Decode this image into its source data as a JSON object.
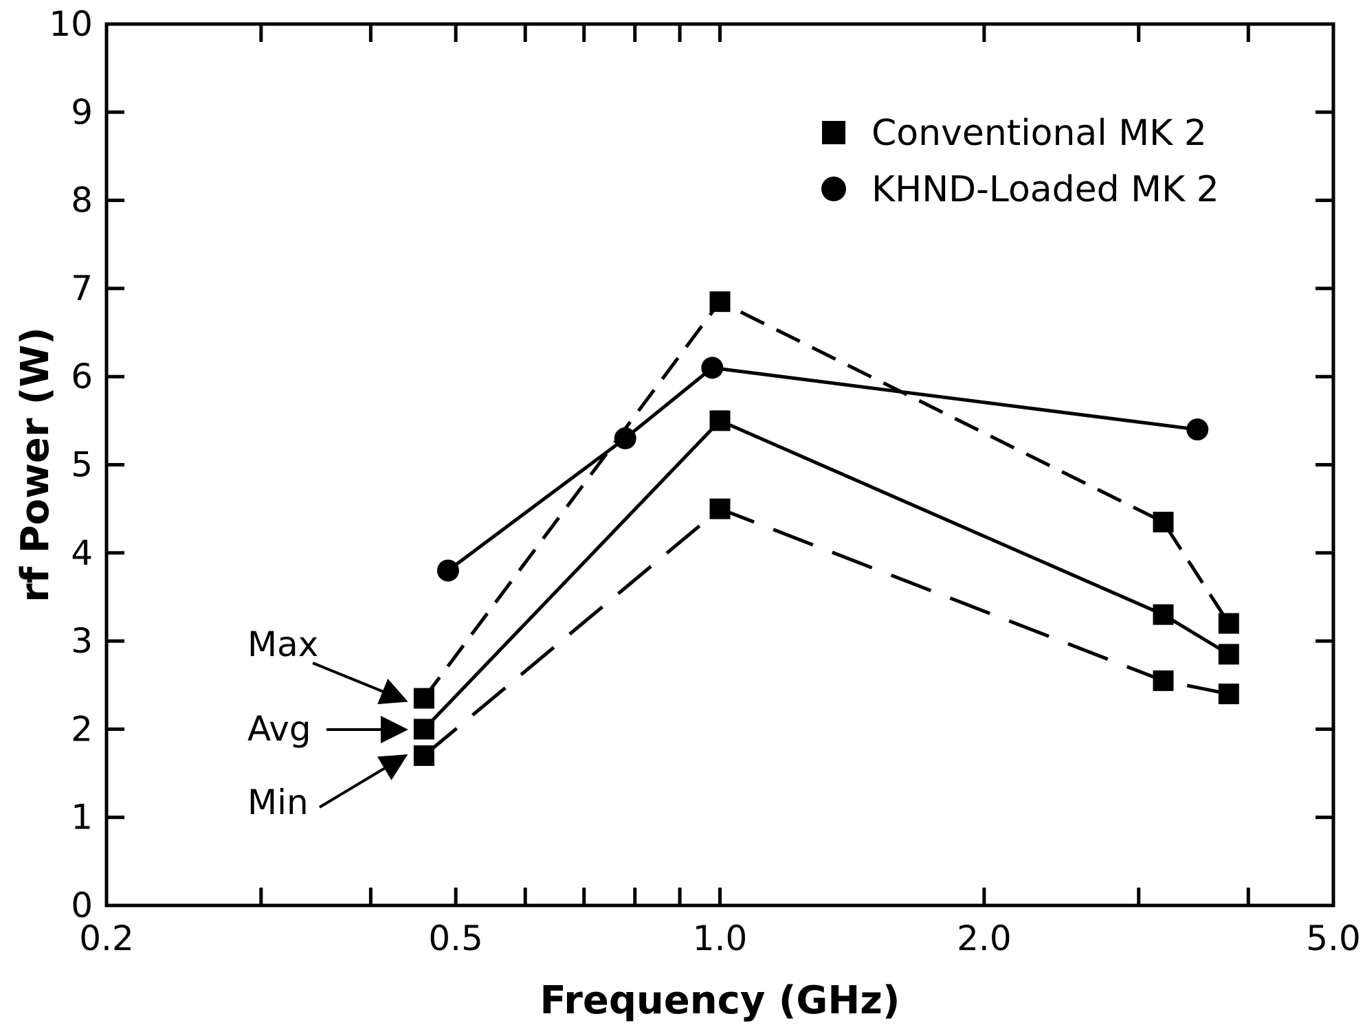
{
  "chart_data": {
    "type": "line",
    "title": "",
    "xlabel": "Frequency (GHz)",
    "ylabel": "rf Power (W)",
    "x_scale": "log",
    "xlim": [
      0.2,
      5.0
    ],
    "ylim": [
      0,
      10
    ],
    "x_tick_labels": [
      "0.2",
      "0.5",
      "1.0",
      "2.0",
      "5.0"
    ],
    "y_tick_labels": [
      "0",
      "1",
      "2",
      "3",
      "4",
      "5",
      "6",
      "7",
      "8",
      "9",
      "10"
    ],
    "grid": false,
    "legend_position": "top-right",
    "legend": [
      {
        "label": "Conventional MK 2",
        "marker": "square"
      },
      {
        "label": "KHND-Loaded MK 2",
        "marker": "circle"
      }
    ],
    "series": [
      {
        "group": "Conventional MK 2",
        "marker": "square",
        "line": "short-dash",
        "x": [
          0.46,
          1.0,
          3.2,
          3.8
        ],
        "y": [
          2.35,
          6.85,
          4.35,
          3.2
        ]
      },
      {
        "group": "Conventional MK 2",
        "marker": "square",
        "line": "solid",
        "x": [
          0.46,
          1.0,
          3.2,
          3.8
        ],
        "y": [
          2.0,
          5.5,
          3.3,
          2.85
        ]
      },
      {
        "group": "Conventional MK 2",
        "marker": "square",
        "line": "long-dash",
        "x": [
          0.46,
          1.0,
          3.2,
          3.8
        ],
        "y": [
          1.7,
          4.5,
          2.55,
          2.4
        ]
      },
      {
        "group": "KHND-Loaded MK 2",
        "marker": "circle",
        "line": "solid",
        "x": [
          0.49,
          0.78,
          0.98,
          3.5
        ],
        "y": [
          3.8,
          5.3,
          6.1,
          5.4
        ]
      }
    ],
    "annotations": [
      {
        "text": "Max",
        "target_series": 0
      },
      {
        "text": "Avg",
        "target_series": 1
      },
      {
        "text": "Min",
        "target_series": 2
      }
    ]
  }
}
